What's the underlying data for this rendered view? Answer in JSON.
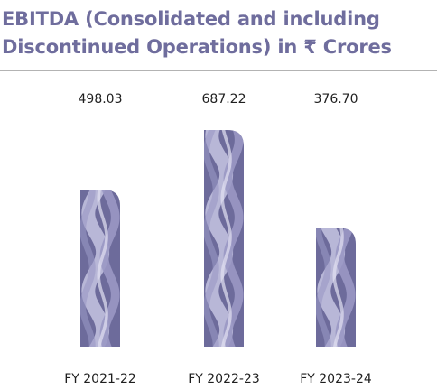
{
  "header": {
    "title_line1": "EBITDA (Consolidated and including",
    "title_line2": "Discontinued Operations) in ₹ Crores"
  },
  "colors": {
    "title": "#6f6d9d",
    "bar_dark": "#6d6b9b",
    "bar_mid": "#9a98c4",
    "bar_light": "#c6c4e2",
    "rule": "#b3b3b3",
    "label": "#1f1f1f"
  },
  "chart_data": {
    "type": "bar",
    "title": "EBITDA (Consolidated and including Discontinued Operations) in ₹ Crores",
    "categories": [
      "FY 2021-22",
      "FY 2022-23",
      "FY 2023-24"
    ],
    "values": [
      498.03,
      687.22,
      376.7
    ],
    "value_labels": [
      "498.03",
      "687.22",
      "376.70"
    ],
    "xlabel": "",
    "ylabel": "",
    "ylim": [
      0,
      687.22
    ],
    "grid": false,
    "legend": "none"
  }
}
